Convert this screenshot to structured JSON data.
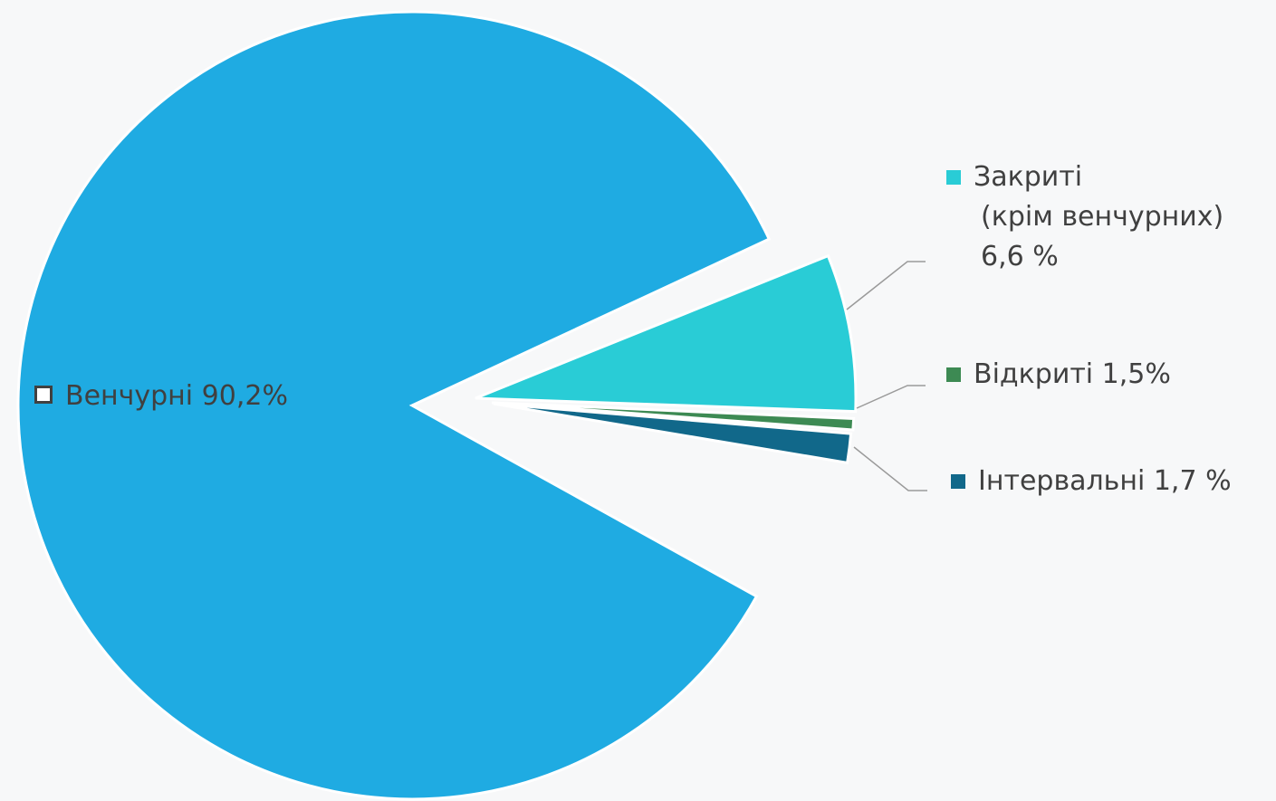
{
  "chart_data": {
    "type": "pie",
    "slices": [
      {
        "label": "Венчурні 90,2%",
        "value": 90.2,
        "color": "#1fabe2"
      },
      {
        "label_lines": [
          "Закриті",
          "(крім венчурних)",
          "6,6 %"
        ],
        "value": 6.6,
        "color": "#29ccd6"
      },
      {
        "label": "Відкриті 1,5%",
        "value": 1.5,
        "color": "#3d8a53"
      },
      {
        "label": "Інтервальні 1,7 %",
        "value": 1.7,
        "color": "#11688a"
      }
    ],
    "legend": "labels beside slices"
  }
}
